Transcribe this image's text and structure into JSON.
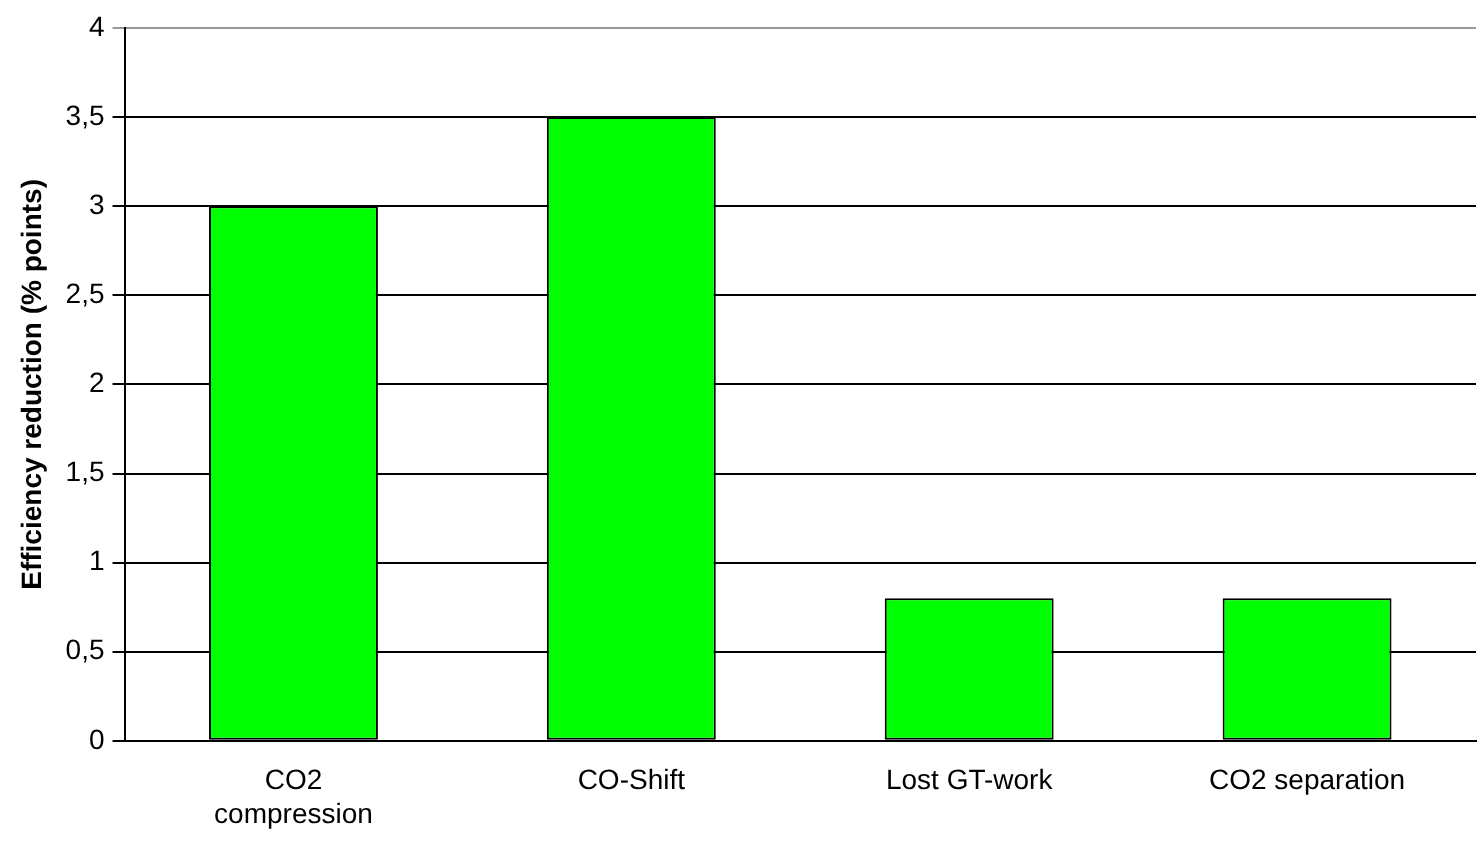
{
  "chart_data": {
    "type": "bar",
    "ylabel": "Efficiency reduction (% points)",
    "categories": [
      "CO2 compression",
      "CO-Shift",
      "Lost GT-work",
      "CO2 separation"
    ],
    "values": [
      3,
      3.5,
      0.8,
      0.8
    ],
    "color": "#00ff00",
    "ylim": [
      0,
      4
    ],
    "yticks": [
      0,
      {
        "value": 0.5,
        "label": "0,5"
      },
      1,
      {
        "value": 1.5,
        "label": "1,5"
      },
      2,
      {
        "value": 2.5,
        "label": "2,5"
      },
      3,
      {
        "value": 3.5,
        "label": "3,5"
      },
      4
    ],
    "grid": "y",
    "legend": false
  }
}
